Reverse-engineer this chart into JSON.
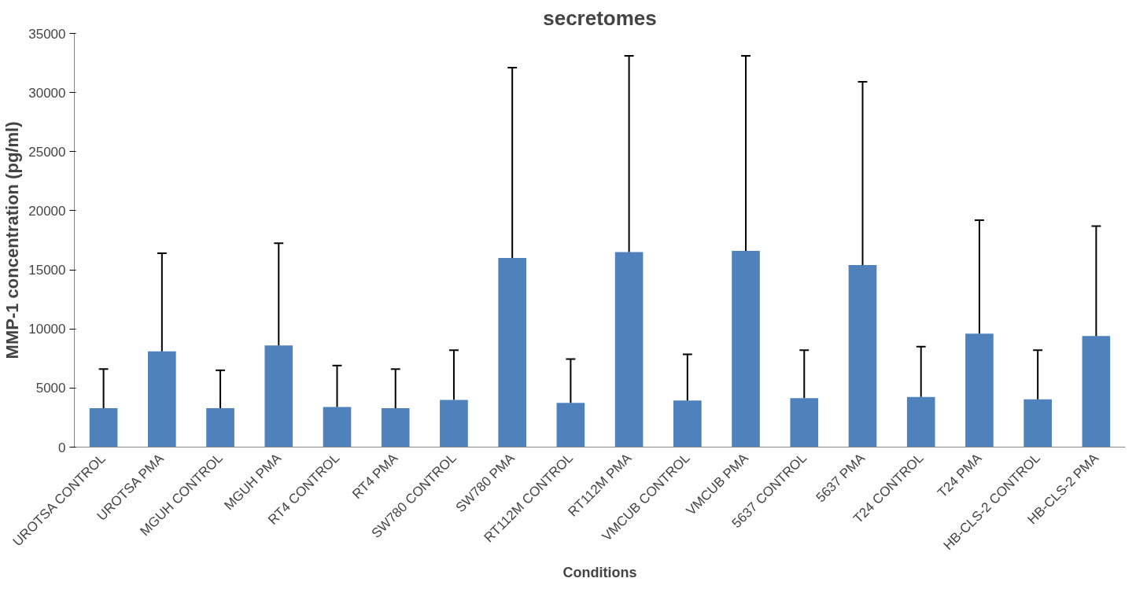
{
  "chart_data": {
    "type": "bar",
    "title": "secretomes",
    "xlabel": "Conditions",
    "ylabel": "MMP-1 concentration (pg/ml)",
    "categories": [
      "UROTSA CONTROL",
      "UROTSA PMA",
      "MGUH CONTROL",
      "MGUH PMA",
      "RT4 CONTROL",
      "RT4 PMA",
      "SW780 CONTROL",
      "SW780 PMA",
      "RT112M CONTROL",
      "RT112M PMA",
      "VMCUB CONTROL",
      "VMCUB PMA",
      "5637 CONTROL",
      "5637 PMA",
      "T24 CONTROL",
      "T24 PMA",
      "HB-CLS-2 CONTROL",
      "HB-CLS-2 PMA"
    ],
    "values": [
      3300,
      8100,
      3300,
      8600,
      3400,
      3300,
      4000,
      16000,
      3750,
      16500,
      3950,
      16600,
      4150,
      15400,
      4250,
      9600,
      4050,
      9400
    ],
    "errors": [
      [
        3300,
        6600
      ],
      [
        8100,
        16400
      ],
      [
        3300,
        6500
      ],
      [
        8600,
        17250
      ],
      [
        3400,
        6900
      ],
      [
        3300,
        6600
      ],
      [
        4000,
        8200
      ],
      [
        16000,
        32100
      ],
      [
        3750,
        7450
      ],
      [
        16500,
        33100
      ],
      [
        3950,
        7850
      ],
      [
        16600,
        33100
      ],
      [
        4150,
        8200
      ],
      [
        15400,
        30900
      ],
      [
        4250,
        8500
      ],
      [
        9600,
        19200
      ],
      [
        4050,
        8200
      ],
      [
        9400,
        18700
      ]
    ],
    "color": "#4f81bd",
    "ylim": [
      0,
      35000
    ],
    "yticks": [
      0,
      5000,
      10000,
      15000,
      20000,
      25000,
      30000,
      35000
    ],
    "grid": false
  }
}
